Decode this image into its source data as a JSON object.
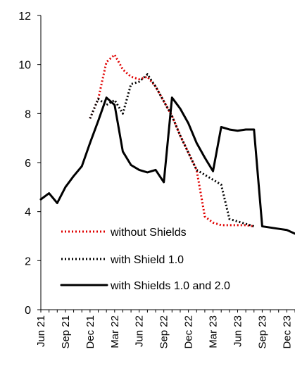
{
  "chart_data": {
    "type": "line",
    "title": "",
    "xlabel": "",
    "ylabel": "",
    "ylim": [
      0,
      12
    ],
    "yticks": [
      0,
      2,
      4,
      6,
      8,
      10,
      12
    ],
    "xlim": [
      "2021-06",
      "2024-01"
    ],
    "xtick_labels": [
      "Jun 21",
      "Sep 21",
      "Dec 21",
      "Mar 22",
      "Jun 22",
      "Sep 22",
      "Dec 22",
      "Mar 23",
      "Jun 23",
      "Sep 23",
      "Dec 23"
    ],
    "legend_position": "bottom-left",
    "series": [
      {
        "name": "without Shields",
        "style": "dotted",
        "color": "#e00000",
        "points": [
          [
            "2021-12",
            7.8
          ],
          [
            "2022-01",
            8.6
          ],
          [
            "2022-02",
            10.1
          ],
          [
            "2022-03",
            10.4
          ],
          [
            "2022-04",
            9.8
          ],
          [
            "2022-05",
            9.5
          ],
          [
            "2022-06",
            9.4
          ],
          [
            "2022-07",
            9.5
          ],
          [
            "2022-08",
            9.1
          ],
          [
            "2022-09",
            8.5
          ],
          [
            "2022-10",
            7.9
          ],
          [
            "2022-11",
            7.1
          ],
          [
            "2022-12",
            6.4
          ],
          [
            "2023-01",
            5.7
          ],
          [
            "2023-02",
            3.8
          ],
          [
            "2023-03",
            3.55
          ],
          [
            "2023-04",
            3.45
          ],
          [
            "2023-05",
            3.45
          ],
          [
            "2023-06",
            3.45
          ],
          [
            "2023-07",
            3.45
          ],
          [
            "2023-08",
            3.4
          ]
        ]
      },
      {
        "name": "with Shield 1.0",
        "style": "dotted",
        "color": "#000000",
        "points": [
          [
            "2021-12",
            7.8
          ],
          [
            "2022-01",
            8.6
          ],
          [
            "2022-02",
            8.35
          ],
          [
            "2022-03",
            8.55
          ],
          [
            "2022-04",
            8.0
          ],
          [
            "2022-05",
            9.2
          ],
          [
            "2022-06",
            9.3
          ],
          [
            "2022-07",
            9.6
          ],
          [
            "2022-08",
            9.1
          ],
          [
            "2022-09",
            8.5
          ],
          [
            "2022-10",
            7.9
          ],
          [
            "2022-11",
            7.1
          ],
          [
            "2022-12",
            6.4
          ],
          [
            "2023-01",
            5.7
          ],
          [
            "2023-02",
            5.5
          ],
          [
            "2023-03",
            5.3
          ],
          [
            "2023-04",
            5.1
          ],
          [
            "2023-05",
            3.7
          ],
          [
            "2023-06",
            3.6
          ],
          [
            "2023-07",
            3.5
          ],
          [
            "2023-08",
            3.4
          ]
        ]
      },
      {
        "name": "with Shields 1.0 and 2.0",
        "style": "solid",
        "color": "#000000",
        "points": [
          [
            "2021-06",
            4.5
          ],
          [
            "2021-07",
            4.75
          ],
          [
            "2021-08",
            4.35
          ],
          [
            "2021-09",
            5.0
          ],
          [
            "2021-10",
            5.45
          ],
          [
            "2021-11",
            5.85
          ],
          [
            "2021-12",
            6.8
          ],
          [
            "2022-01",
            7.7
          ],
          [
            "2022-02",
            8.65
          ],
          [
            "2022-03",
            8.35
          ],
          [
            "2022-04",
            6.45
          ],
          [
            "2022-05",
            5.9
          ],
          [
            "2022-06",
            5.7
          ],
          [
            "2022-07",
            5.6
          ],
          [
            "2022-08",
            5.7
          ],
          [
            "2022-09",
            5.2
          ],
          [
            "2022-10",
            8.65
          ],
          [
            "2022-11",
            8.2
          ],
          [
            "2022-12",
            7.6
          ],
          [
            "2023-01",
            6.8
          ],
          [
            "2023-02",
            6.2
          ],
          [
            "2023-03",
            5.65
          ],
          [
            "2023-04",
            7.45
          ],
          [
            "2023-05",
            7.35
          ],
          [
            "2023-06",
            7.3
          ],
          [
            "2023-07",
            7.35
          ],
          [
            "2023-08",
            7.35
          ],
          [
            "2023-09",
            3.4
          ],
          [
            "2023-10",
            3.35
          ],
          [
            "2023-11",
            3.3
          ],
          [
            "2023-12",
            3.25
          ],
          [
            "2024-01",
            3.1
          ]
        ]
      }
    ]
  }
}
